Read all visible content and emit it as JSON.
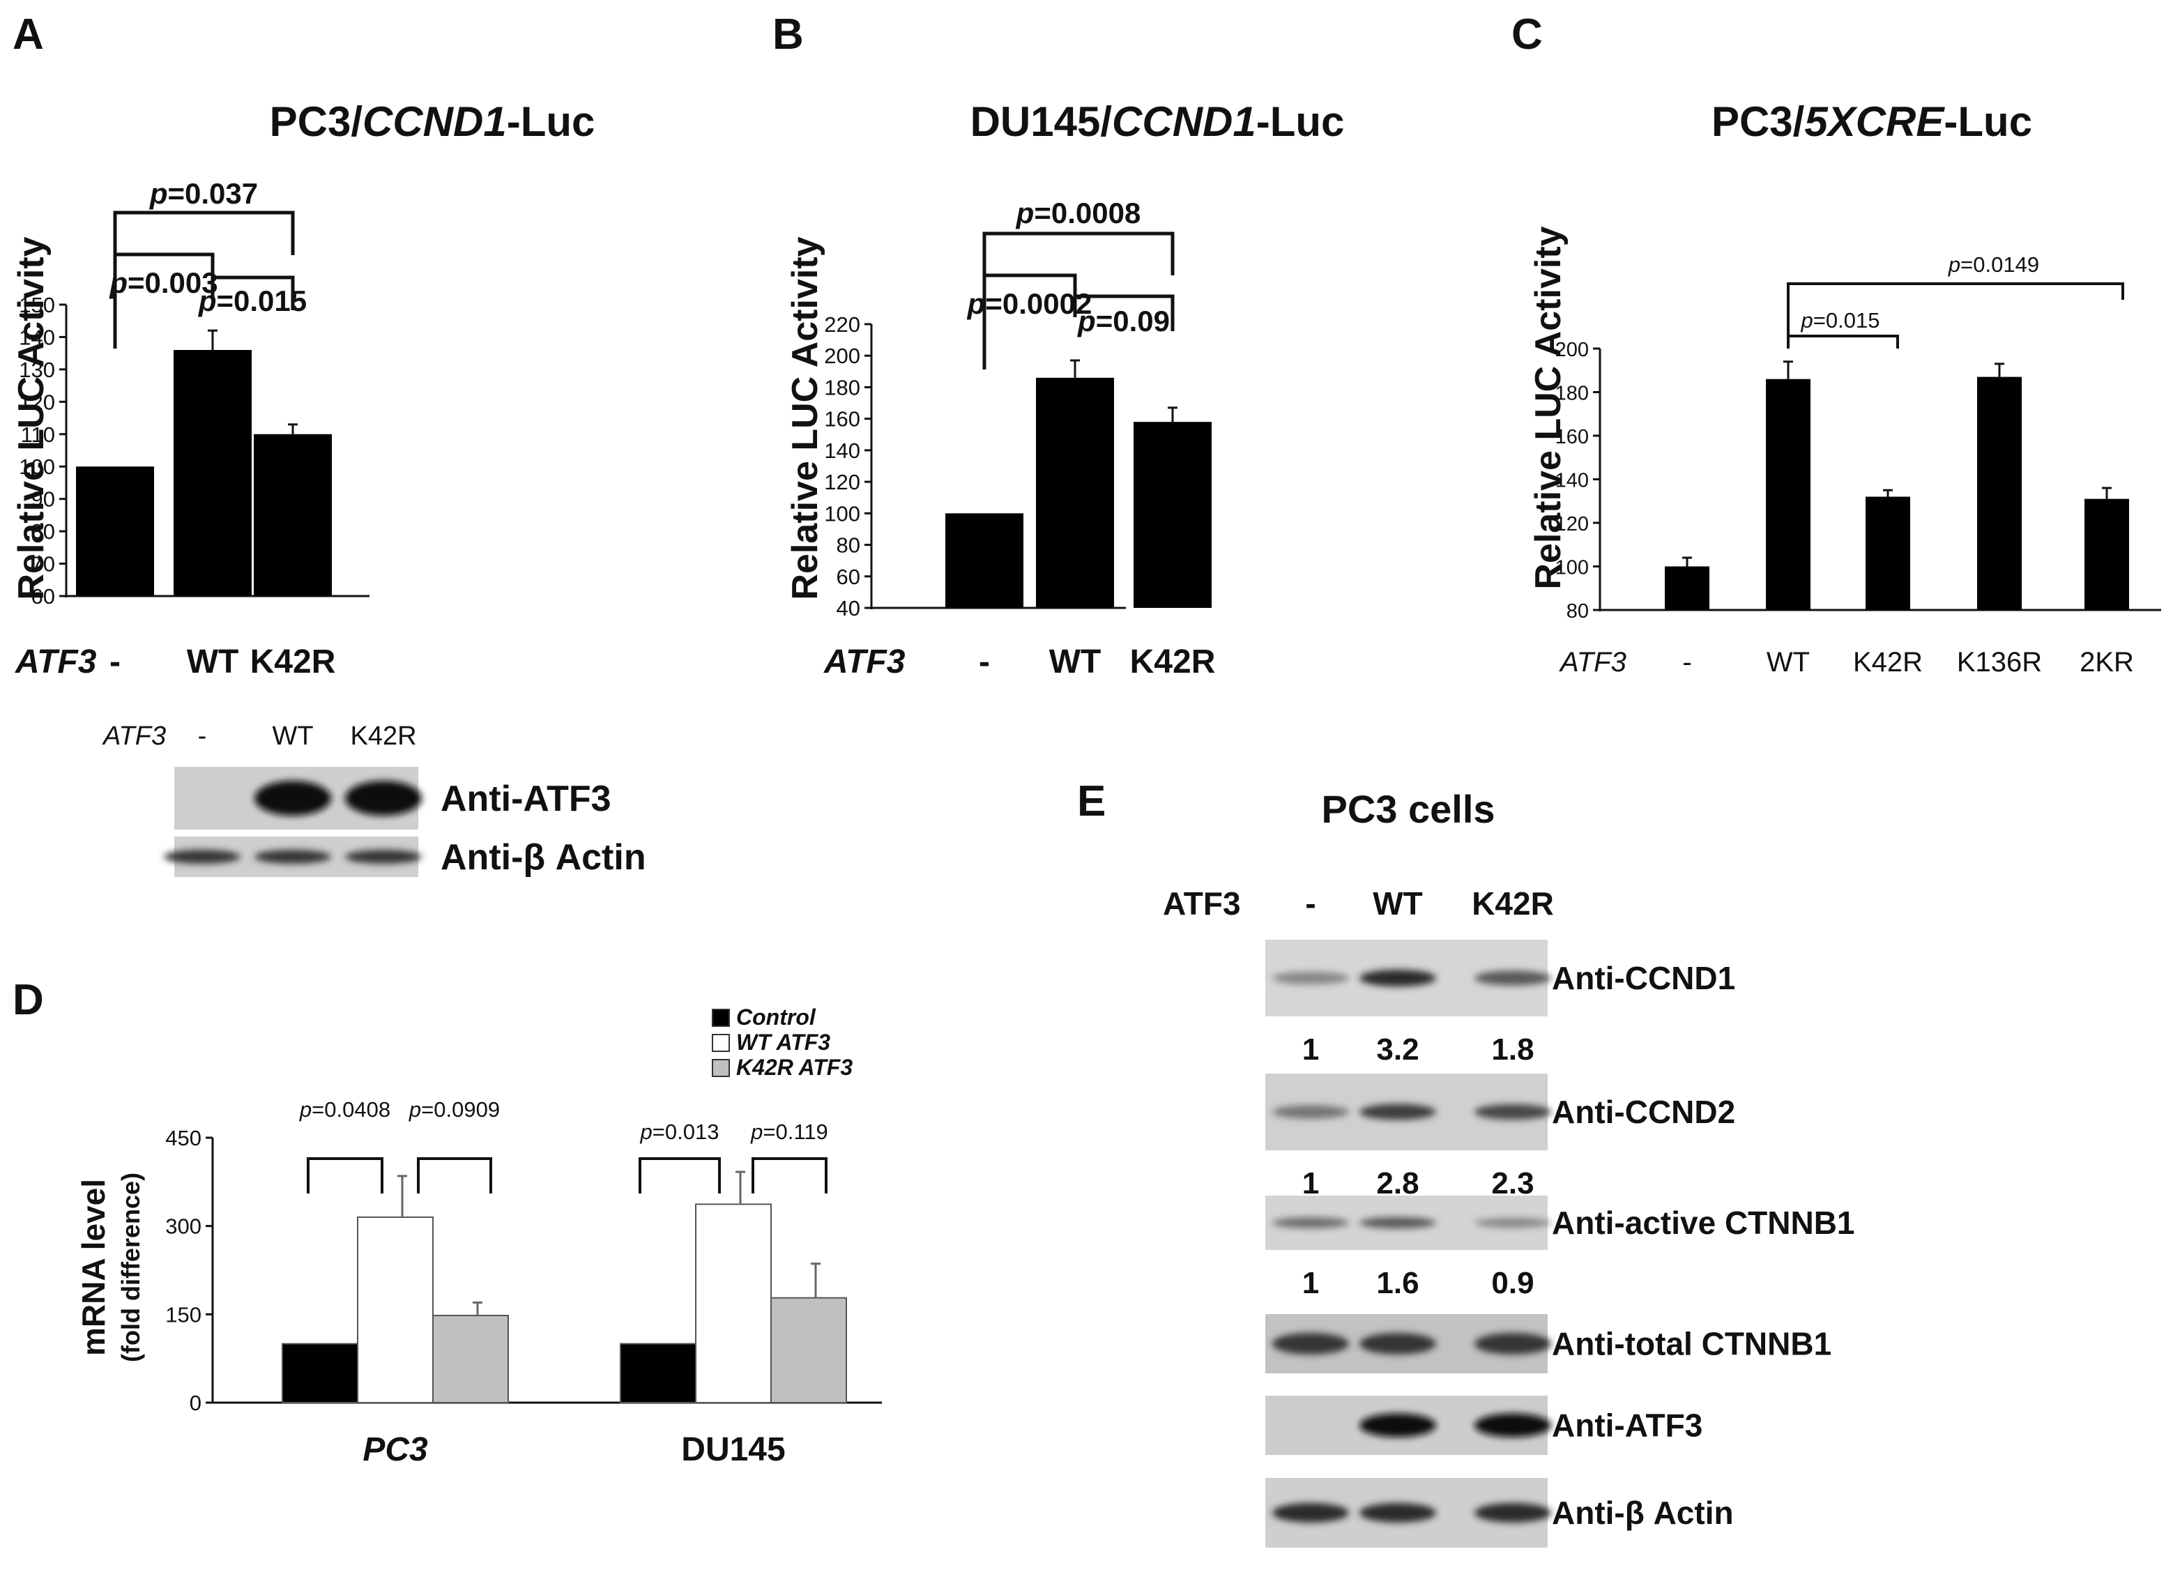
{
  "panels": {
    "A": "A",
    "B": "B",
    "C": "C",
    "D": "D",
    "E": "E"
  },
  "chart_data": [
    {
      "id": "A",
      "type": "bar",
      "title_parts": [
        "PC3/",
        "CCND1",
        "-Luc"
      ],
      "ylabel": "Relative LUC Activity",
      "factor_label": "ATF3",
      "categories": [
        "-",
        "WT",
        "K42R"
      ],
      "values": [
        100,
        136,
        110
      ],
      "errors": [
        0,
        6,
        3
      ],
      "ylim": [
        60,
        150
      ],
      "yticks": [
        60,
        70,
        80,
        90,
        100,
        110,
        120,
        130,
        140,
        150
      ],
      "comparisons": [
        {
          "from": 0,
          "to": 1,
          "label": "=0.003"
        },
        {
          "from": 1,
          "to": 2,
          "label": "=0.015"
        },
        {
          "from": 0,
          "to": 2,
          "label": "=0.037"
        }
      ]
    },
    {
      "id": "B",
      "type": "bar",
      "title_parts": [
        "DU145/",
        "CCND1",
        "-Luc"
      ],
      "ylabel": "Relative LUC Activity",
      "factor_label": "ATF3",
      "categories": [
        "-",
        "WT",
        "K42R"
      ],
      "values": [
        100,
        186,
        158
      ],
      "errors": [
        0,
        11,
        9
      ],
      "ylim": [
        40,
        220
      ],
      "yticks": [
        40,
        60,
        80,
        100,
        120,
        140,
        160,
        180,
        200,
        220
      ],
      "comparisons": [
        {
          "from": 0,
          "to": 1,
          "label": "=0.0002"
        },
        {
          "from": 1,
          "to": 2,
          "label": "=0.09"
        },
        {
          "from": 0,
          "to": 2,
          "label": "=0.0008"
        }
      ]
    },
    {
      "id": "C",
      "type": "bar",
      "title_parts": [
        "PC3/",
        "5XCRE",
        "-Luc"
      ],
      "ylabel": "Relative  LUC Activity",
      "factor_label": "ATF3",
      "categories": [
        "-",
        "WT",
        "K42R",
        "K136R",
        "2KR"
      ],
      "values": [
        100,
        186,
        132,
        187,
        131
      ],
      "errors": [
        4,
        8,
        3,
        6,
        5
      ],
      "ylim": [
        80,
        200
      ],
      "yticks": [
        80,
        100,
        120,
        140,
        160,
        180,
        200
      ],
      "comparisons": [
        {
          "from": 1,
          "to": 2,
          "label": "=0.015"
        },
        {
          "from": 1,
          "to": 4,
          "label": "=0.0149"
        }
      ]
    },
    {
      "id": "D",
      "type": "bar",
      "ylabel": "mRNA  level",
      "ylabel2": "(fold difference)",
      "categories": [
        "PC3",
        "DU145"
      ],
      "ylim": [
        0,
        450
      ],
      "yticks": [
        0,
        150,
        300,
        450
      ],
      "series": [
        {
          "name": "Control",
          "values": [
            100,
            100
          ],
          "errors": [
            0,
            0
          ],
          "color": "#000000"
        },
        {
          "name": "WT ATF3",
          "values": [
            315,
            337
          ],
          "errors": [
            70,
            55
          ],
          "color": "#ffffff"
        },
        {
          "name": "K42R ATF3",
          "values": [
            148,
            178
          ],
          "errors": [
            22,
            58
          ],
          "color": "#c0c0c0"
        }
      ],
      "comparisons": [
        {
          "group": 0,
          "from": 0,
          "to": 1,
          "label": "=0.0408"
        },
        {
          "group": 0,
          "from": 1,
          "to": 2,
          "label": "=0.0909"
        },
        {
          "group": 1,
          "from": 0,
          "to": 1,
          "label": "=0.013"
        },
        {
          "group": 1,
          "from": 1,
          "to": 2,
          "label": "=0.119"
        }
      ]
    }
  ],
  "p_prefix": "p",
  "blotA": {
    "factor": "ATF3",
    "lanes": [
      "-",
      "WT",
      "K42R"
    ],
    "rows": [
      {
        "label": "Anti-ATF3",
        "intensity": [
          0.0,
          1.0,
          1.0
        ]
      },
      {
        "label": "Anti-β Actin",
        "intensity": [
          0.8,
          0.8,
          0.8
        ]
      }
    ]
  },
  "blotE": {
    "title": "PC3 cells",
    "factor": "ATF3",
    "lanes": [
      "-",
      "WT",
      "K42R"
    ],
    "rows": [
      {
        "label": "Anti-CCND1",
        "intensity": [
          0.35,
          0.85,
          0.6
        ],
        "quant": [
          "1",
          "3.2",
          "1.8"
        ]
      },
      {
        "label": "Anti-CCND2",
        "intensity": [
          0.45,
          0.75,
          0.7
        ],
        "quant": [
          "1",
          "2.8",
          "2.3"
        ]
      },
      {
        "label": "Anti-active  CTNNB1",
        "intensity": [
          0.5,
          0.6,
          0.35
        ],
        "quant": [
          "1",
          "1.6",
          "0.9"
        ]
      },
      {
        "label": "Anti-total  CTNNB1",
        "intensity": [
          0.8,
          0.8,
          0.8
        ],
        "quant": []
      },
      {
        "label": "Anti-ATF3",
        "intensity": [
          0.0,
          1.0,
          1.0
        ],
        "quant": []
      },
      {
        "label": "Anti-β Actin",
        "intensity": [
          0.85,
          0.85,
          0.85
        ],
        "quant": []
      }
    ]
  }
}
